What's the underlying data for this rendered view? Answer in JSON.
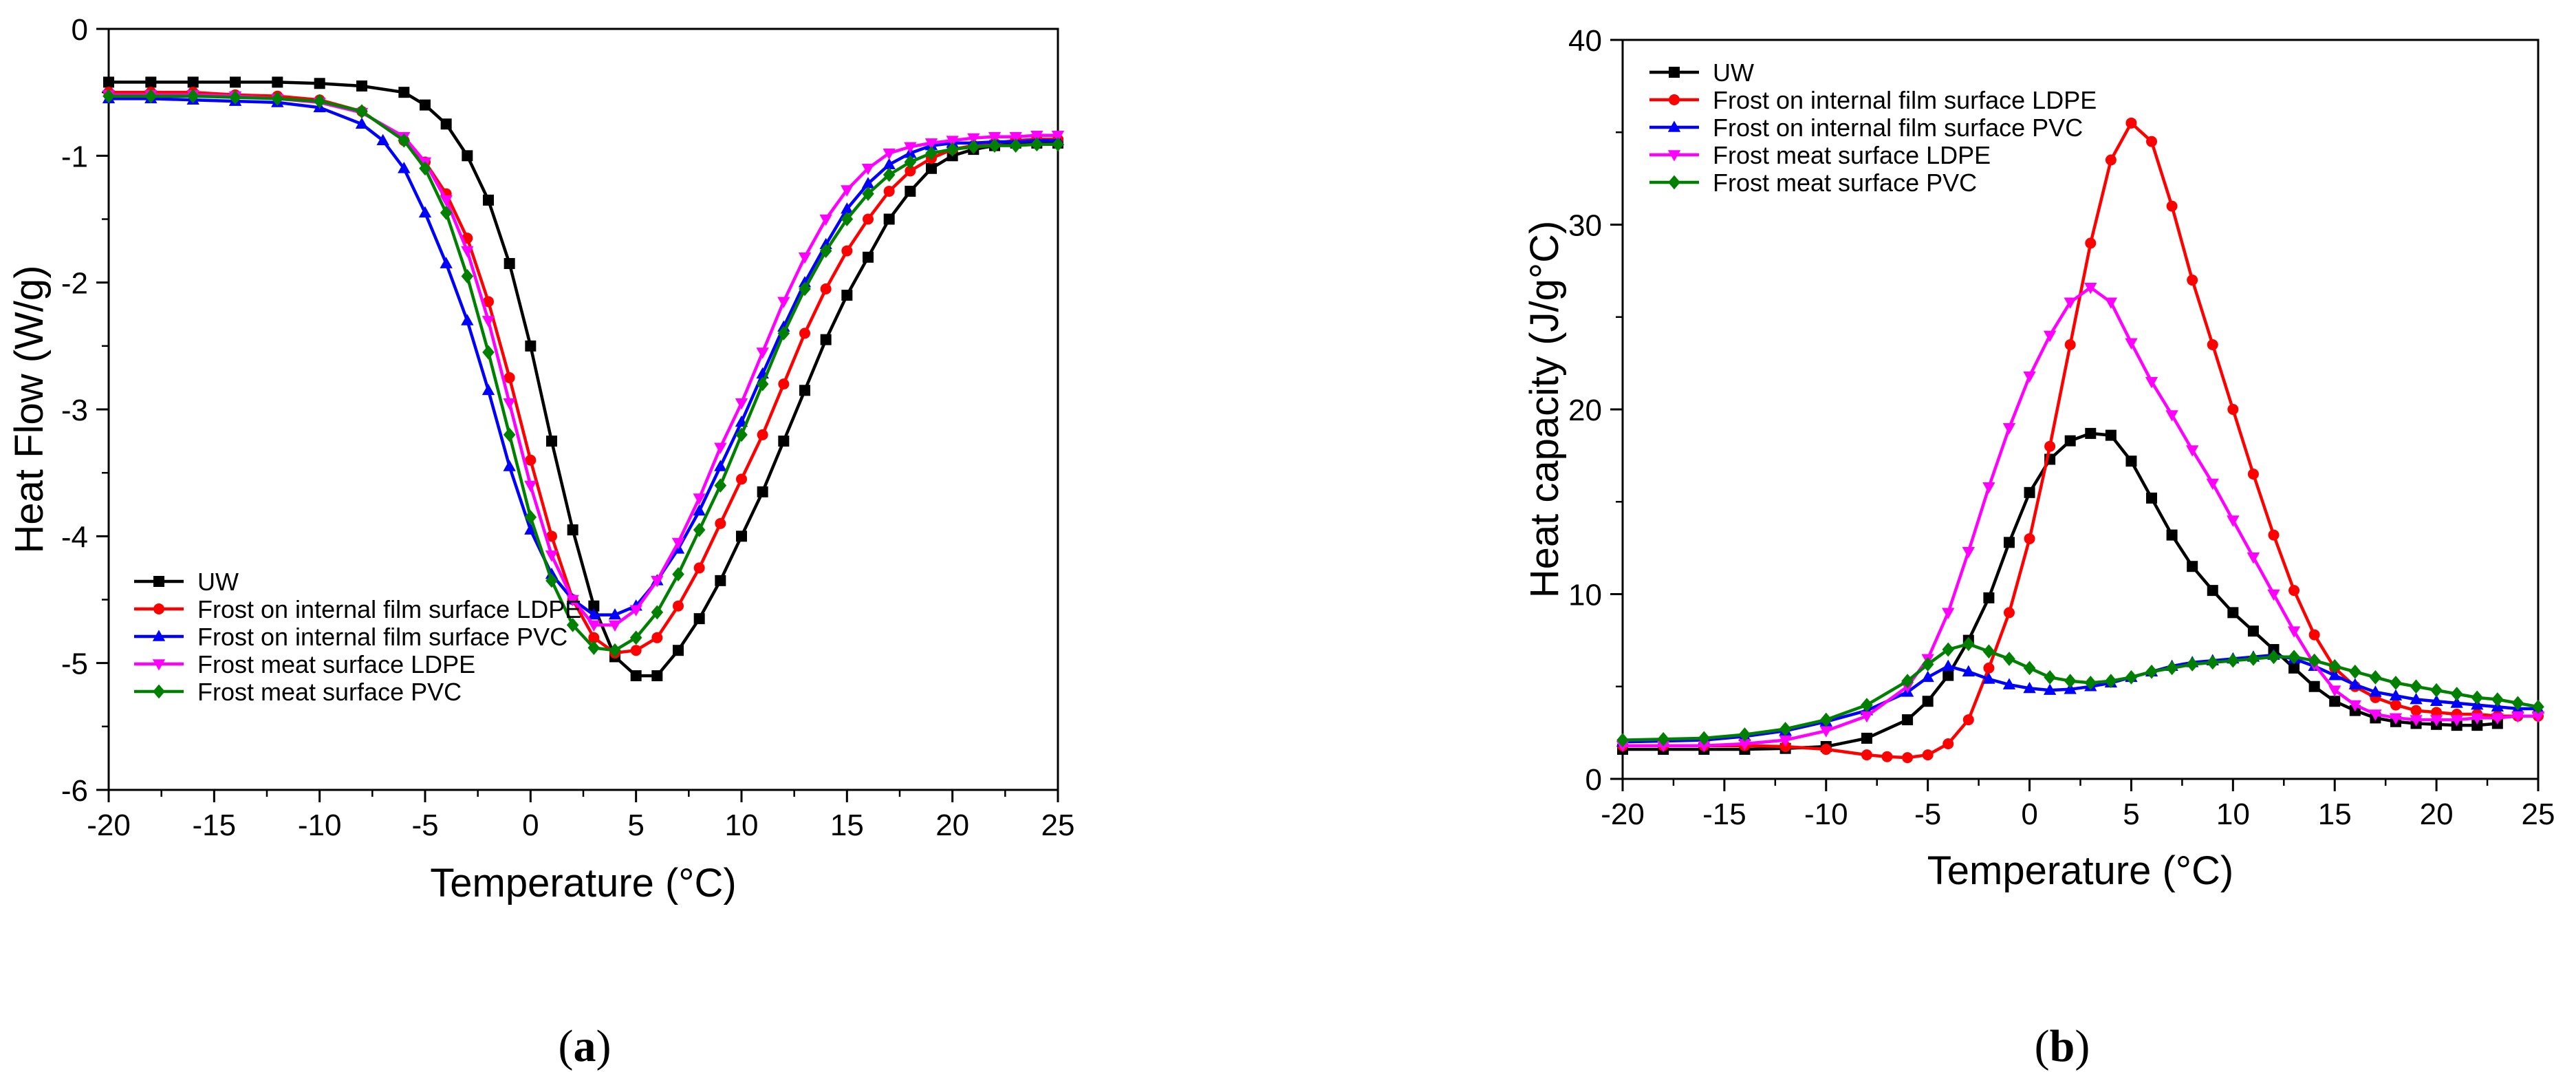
{
  "series_meta": [
    {
      "name": "UW",
      "color": "#000000",
      "marker": "square"
    },
    {
      "name": "Frost on internal film surface LDPE",
      "color": "#ff0000",
      "marker": "circle"
    },
    {
      "name": "Frost on internal film surface PVC",
      "color": "#0000ff",
      "marker": "triangle-up"
    },
    {
      "name": "Frost meat surface LDPE",
      "color": "#ff00ff",
      "marker": "triangle-down"
    },
    {
      "name": "Frost meat surface PVC",
      "color": "#008000",
      "marker": "diamond"
    }
  ],
  "panels": {
    "a": {
      "label_open": "(",
      "label_letter": "a",
      "label_close": ")"
    },
    "b": {
      "label_open": "(",
      "label_letter": "b",
      "label_close": ")"
    }
  },
  "chart_data": [
    {
      "id": "a",
      "type": "line",
      "title": "",
      "xlabel": "Temperature (°C)",
      "ylabel": "Heat Flow (W/g)",
      "xlim": [
        -20,
        25
      ],
      "ylim": [
        -6,
        0
      ],
      "xticks": [
        -20,
        -15,
        -10,
        -5,
        0,
        5,
        10,
        15,
        20,
        25
      ],
      "yticks": [
        -6,
        -5,
        -4,
        -3,
        -2,
        -1,
        0
      ],
      "grid": false,
      "legend_position": "bottom-left",
      "series": [
        {
          "name": "UW",
          "x": [
            -20,
            -18,
            -16,
            -14,
            -12,
            -10,
            -8,
            -6,
            -5,
            -4,
            -3,
            -2,
            -1,
            0,
            1,
            2,
            3,
            4,
            5,
            6,
            7,
            8,
            9,
            10,
            11,
            12,
            13,
            14,
            15,
            16,
            17,
            18,
            19,
            20,
            21,
            22,
            23,
            24,
            25
          ],
          "y": [
            -0.42,
            -0.42,
            -0.42,
            -0.42,
            -0.42,
            -0.43,
            -0.45,
            -0.5,
            -0.6,
            -0.75,
            -1.0,
            -1.35,
            -1.85,
            -2.5,
            -3.25,
            -3.95,
            -4.55,
            -4.95,
            -5.1,
            -5.1,
            -4.9,
            -4.65,
            -4.35,
            -4.0,
            -3.65,
            -3.25,
            -2.85,
            -2.45,
            -2.1,
            -1.8,
            -1.5,
            -1.28,
            -1.1,
            -1.0,
            -0.95,
            -0.92,
            -0.9,
            -0.9,
            -0.9
          ]
        },
        {
          "name": "Frost on internal film surface LDPE",
          "x": [
            -20,
            -18,
            -16,
            -14,
            -12,
            -10,
            -8,
            -6,
            -5,
            -4,
            -3,
            -2,
            -1,
            0,
            1,
            2,
            3,
            4,
            5,
            6,
            7,
            8,
            9,
            10,
            11,
            12,
            13,
            14,
            15,
            16,
            17,
            18,
            19,
            20,
            21,
            22,
            23,
            24,
            25
          ],
          "y": [
            -0.5,
            -0.5,
            -0.5,
            -0.52,
            -0.53,
            -0.56,
            -0.65,
            -0.88,
            -1.05,
            -1.3,
            -1.65,
            -2.15,
            -2.75,
            -3.4,
            -4.0,
            -4.5,
            -4.8,
            -4.92,
            -4.9,
            -4.8,
            -4.55,
            -4.25,
            -3.9,
            -3.55,
            -3.2,
            -2.8,
            -2.4,
            -2.05,
            -1.75,
            -1.5,
            -1.28,
            -1.12,
            -1.02,
            -0.95,
            -0.92,
            -0.9,
            -0.88,
            -0.87,
            -0.87
          ]
        },
        {
          "name": "Frost on internal film surface PVC",
          "x": [
            -20,
            -18,
            -16,
            -14,
            -12,
            -10,
            -8,
            -7,
            -6,
            -5,
            -4,
            -3,
            -2,
            -1,
            0,
            1,
            2,
            3,
            4,
            5,
            6,
            7,
            8,
            9,
            10,
            11,
            12,
            13,
            14,
            15,
            16,
            17,
            18,
            19,
            20,
            21,
            22,
            23,
            24,
            25
          ],
          "y": [
            -0.55,
            -0.55,
            -0.56,
            -0.57,
            -0.58,
            -0.62,
            -0.75,
            -0.88,
            -1.1,
            -1.45,
            -1.85,
            -2.3,
            -2.85,
            -3.45,
            -3.95,
            -4.3,
            -4.5,
            -4.62,
            -4.62,
            -4.55,
            -4.35,
            -4.1,
            -3.8,
            -3.45,
            -3.1,
            -2.72,
            -2.35,
            -2.0,
            -1.7,
            -1.42,
            -1.22,
            -1.07,
            -0.98,
            -0.92,
            -0.9,
            -0.9,
            -0.89,
            -0.89,
            -0.88,
            -0.88
          ]
        },
        {
          "name": "Frost meat surface LDPE",
          "x": [
            -20,
            -18,
            -16,
            -14,
            -12,
            -10,
            -8,
            -6,
            -5,
            -4,
            -3,
            -2,
            -1,
            0,
            1,
            2,
            3,
            4,
            5,
            6,
            7,
            8,
            9,
            10,
            11,
            12,
            13,
            14,
            15,
            16,
            17,
            18,
            19,
            20,
            21,
            22,
            23,
            24,
            25
          ],
          "y": [
            -0.52,
            -0.52,
            -0.52,
            -0.53,
            -0.55,
            -0.58,
            -0.66,
            -0.85,
            -1.05,
            -1.35,
            -1.75,
            -2.3,
            -2.95,
            -3.6,
            -4.15,
            -4.5,
            -4.7,
            -4.7,
            -4.58,
            -4.35,
            -4.05,
            -3.7,
            -3.3,
            -2.95,
            -2.55,
            -2.15,
            -1.8,
            -1.5,
            -1.27,
            -1.1,
            -0.98,
            -0.93,
            -0.9,
            -0.88,
            -0.86,
            -0.85,
            -0.85,
            -0.84,
            -0.84
          ]
        },
        {
          "name": "Frost meat surface PVC",
          "x": [
            -20,
            -18,
            -16,
            -14,
            -12,
            -10,
            -8,
            -6,
            -5,
            -4,
            -3,
            -2,
            -1,
            0,
            1,
            2,
            3,
            4,
            5,
            6,
            7,
            8,
            9,
            10,
            11,
            12,
            13,
            14,
            15,
            16,
            17,
            18,
            19,
            20,
            21,
            22,
            23,
            24,
            25
          ],
          "y": [
            -0.53,
            -0.53,
            -0.53,
            -0.54,
            -0.55,
            -0.57,
            -0.65,
            -0.88,
            -1.1,
            -1.45,
            -1.95,
            -2.55,
            -3.2,
            -3.85,
            -4.35,
            -4.7,
            -4.88,
            -4.9,
            -4.8,
            -4.6,
            -4.3,
            -3.95,
            -3.6,
            -3.2,
            -2.8,
            -2.4,
            -2.05,
            -1.75,
            -1.5,
            -1.3,
            -1.15,
            -1.05,
            -0.98,
            -0.95,
            -0.93,
            -0.92,
            -0.92,
            -0.91,
            -0.91
          ]
        }
      ]
    },
    {
      "id": "b",
      "type": "line",
      "title": "",
      "xlabel": "Temperature (°C)",
      "ylabel": "Heat capacity (J/g°C)",
      "xlim": [
        -20,
        25
      ],
      "ylim": [
        0,
        40
      ],
      "xticks": [
        -20,
        -15,
        -10,
        -5,
        0,
        5,
        10,
        15,
        20,
        25
      ],
      "yticks": [
        0,
        10,
        20,
        30,
        40
      ],
      "grid": false,
      "legend_position": "top-left",
      "series": [
        {
          "name": "UW",
          "x": [
            -20,
            -18,
            -16,
            -14,
            -12,
            -10,
            -8,
            -6,
            -5,
            -4,
            -3,
            -2,
            -1,
            0,
            1,
            2,
            3,
            4,
            5,
            6,
            7,
            8,
            9,
            10,
            11,
            12,
            13,
            14,
            15,
            16,
            17,
            18,
            19,
            20,
            21,
            22,
            23
          ],
          "y": [
            1.6,
            1.6,
            1.6,
            1.6,
            1.65,
            1.75,
            2.2,
            3.2,
            4.2,
            5.6,
            7.5,
            9.8,
            12.8,
            15.5,
            17.3,
            18.3,
            18.7,
            18.6,
            17.2,
            15.2,
            13.2,
            11.5,
            10.2,
            9.0,
            8.0,
            7.0,
            6.0,
            5.0,
            4.2,
            3.7,
            3.3,
            3.1,
            3.0,
            2.95,
            2.9,
            2.9,
            3.0
          ]
        },
        {
          "name": "Frost on internal film surface LDPE",
          "x": [
            -20,
            -18,
            -16,
            -14,
            -12,
            -10,
            -8,
            -7,
            -6,
            -5,
            -4,
            -3,
            -2,
            -1,
            0,
            1,
            2,
            3,
            4,
            5,
            6,
            7,
            8,
            9,
            10,
            11,
            12,
            13,
            14,
            15,
            16,
            17,
            18,
            19,
            20,
            21,
            22,
            23,
            24,
            25
          ],
          "y": [
            1.8,
            1.8,
            1.8,
            1.8,
            1.75,
            1.6,
            1.3,
            1.2,
            1.15,
            1.3,
            1.9,
            3.2,
            6.0,
            9.0,
            13.0,
            18.0,
            23.5,
            29.0,
            33.5,
            35.5,
            34.5,
            31.0,
            27.0,
            23.5,
            20.0,
            16.5,
            13.2,
            10.2,
            7.8,
            6.0,
            5.0,
            4.4,
            4.0,
            3.7,
            3.6,
            3.5,
            3.5,
            3.4,
            3.4,
            3.4
          ]
        },
        {
          "name": "Frost on internal film surface PVC",
          "x": [
            -20,
            -18,
            -16,
            -14,
            -12,
            -10,
            -8,
            -6,
            -5,
            -4,
            -3,
            -2,
            -1,
            0,
            1,
            2,
            3,
            4,
            5,
            6,
            7,
            8,
            9,
            10,
            11,
            12,
            13,
            14,
            15,
            16,
            17,
            18,
            19,
            20,
            21,
            22,
            23,
            24,
            25
          ],
          "y": [
            2.0,
            2.05,
            2.1,
            2.3,
            2.6,
            3.1,
            3.7,
            4.7,
            5.5,
            6.1,
            5.8,
            5.4,
            5.1,
            4.9,
            4.8,
            4.85,
            5.0,
            5.2,
            5.5,
            5.8,
            6.1,
            6.3,
            6.4,
            6.5,
            6.6,
            6.7,
            6.5,
            6.1,
            5.6,
            5.1,
            4.7,
            4.5,
            4.3,
            4.2,
            4.1,
            4.0,
            3.9,
            3.8,
            3.8
          ]
        },
        {
          "name": "Frost meat surface LDPE",
          "x": [
            -20,
            -18,
            -16,
            -14,
            -12,
            -10,
            -8,
            -6,
            -5,
            -4,
            -3,
            -2,
            -1,
            0,
            1,
            2,
            3,
            4,
            5,
            6,
            7,
            8,
            9,
            10,
            11,
            12,
            13,
            14,
            15,
            16,
            17,
            18,
            19,
            20,
            21,
            22,
            23,
            24,
            25
          ],
          "y": [
            1.8,
            1.8,
            1.8,
            1.9,
            2.1,
            2.6,
            3.4,
            5.0,
            6.5,
            9.0,
            12.3,
            15.8,
            19.0,
            21.8,
            24.0,
            25.8,
            26.6,
            25.8,
            23.6,
            21.5,
            19.7,
            17.8,
            16.0,
            14.0,
            12.0,
            10.0,
            8.0,
            6.2,
            4.8,
            4.0,
            3.5,
            3.3,
            3.2,
            3.2,
            3.2,
            3.3,
            3.3,
            3.4,
            3.4
          ]
        },
        {
          "name": "Frost meat surface PVC",
          "x": [
            -20,
            -18,
            -16,
            -14,
            -12,
            -10,
            -8,
            -6,
            -5,
            -4,
            -3,
            -2,
            -1,
            0,
            1,
            2,
            3,
            4,
            5,
            6,
            7,
            8,
            9,
            10,
            11,
            12,
            13,
            14,
            15,
            16,
            17,
            18,
            19,
            20,
            21,
            22,
            23,
            24,
            25
          ],
          "y": [
            2.1,
            2.15,
            2.2,
            2.4,
            2.7,
            3.2,
            4.0,
            5.3,
            6.2,
            7.0,
            7.3,
            6.9,
            6.5,
            6.0,
            5.5,
            5.3,
            5.2,
            5.3,
            5.5,
            5.8,
            6.0,
            6.2,
            6.3,
            6.4,
            6.5,
            6.6,
            6.6,
            6.4,
            6.1,
            5.8,
            5.5,
            5.2,
            5.0,
            4.8,
            4.6,
            4.4,
            4.3,
            4.1,
            3.9
          ]
        }
      ]
    }
  ]
}
